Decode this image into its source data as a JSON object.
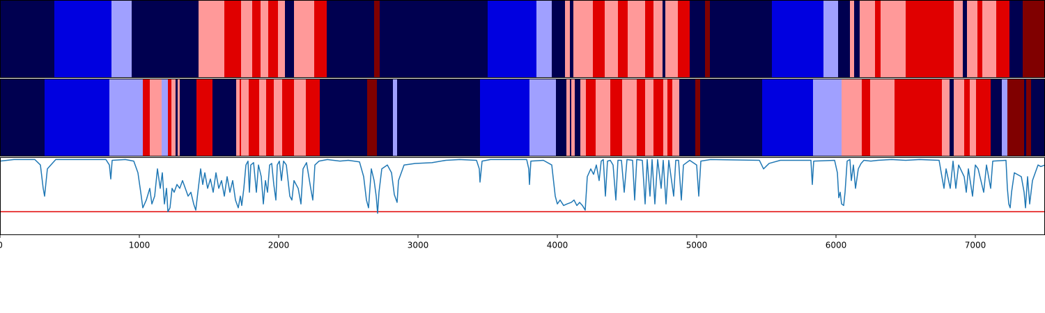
{
  "chart_data": [
    {
      "type": "strip",
      "colors": [
        "#000050",
        "#0000e0",
        "#a0a0ff",
        "#ff9999",
        "#e00000",
        "#800000"
      ],
      "xlim": [
        0,
        7500
      ],
      "bins": [
        0,
        390,
        800,
        945,
        1425,
        1610,
        1730,
        1810,
        1870,
        1925,
        1995,
        2045,
        2110,
        2255,
        2345,
        2685,
        2725,
        3500,
        3850,
        3960,
        4055,
        4090,
        4115,
        4255,
        4340,
        4435,
        4505,
        4630,
        4690,
        4755,
        4775,
        4865,
        4950,
        5060,
        5095,
        5540,
        5910,
        6015,
        6100,
        6130,
        6170,
        6280,
        6320,
        6500,
        6845,
        6910,
        6940,
        7015,
        7050,
        7150,
        7245,
        7340,
        7500
      ],
      "values": [
        0,
        1,
        2,
        0,
        3,
        4,
        3,
        4,
        3,
        4,
        3,
        0,
        3,
        4,
        0,
        5,
        0,
        1,
        2,
        0,
        3,
        0,
        3,
        4,
        3,
        4,
        3,
        4,
        3,
        0,
        3,
        4,
        0,
        5,
        0,
        1,
        2,
        0,
        3,
        0,
        3,
        4,
        3,
        4,
        3,
        0,
        3,
        4,
        3,
        4,
        0,
        5
      ]
    },
    {
      "type": "strip",
      "colors": [
        "#000050",
        "#0000e0",
        "#a0a0ff",
        "#ff9999",
        "#e00000",
        "#800000"
      ],
      "xlim": [
        0,
        7500
      ],
      "bins": [
        0,
        320,
        785,
        1025,
        1075,
        1160,
        1205,
        1230,
        1260,
        1275,
        1290,
        1410,
        1525,
        1695,
        1720,
        1730,
        1785,
        1860,
        1910,
        1965,
        2025,
        2110,
        2195,
        2295,
        2635,
        2705,
        2820,
        2850,
        3445,
        3800,
        3990,
        4065,
        4090,
        4100,
        4125,
        4165,
        4205,
        4275,
        4380,
        4465,
        4570,
        4630,
        4690,
        4760,
        4790,
        4825,
        4875,
        4990,
        5025,
        5470,
        5835,
        6040,
        6185,
        6245,
        6420,
        6760,
        6815,
        6845,
        6920,
        6960,
        7005,
        7110,
        7190,
        7230,
        7350,
        7365,
        7400,
        7500
      ],
      "values": [
        0,
        1,
        2,
        4,
        3,
        2,
        4,
        3,
        0,
        3,
        0,
        4,
        0,
        3,
        4,
        3,
        4,
        3,
        4,
        3,
        4,
        3,
        4,
        0,
        5,
        0,
        2,
        0,
        1,
        2,
        0,
        3,
        0,
        3,
        0,
        3,
        4,
        3,
        4,
        3,
        4,
        3,
        4,
        3,
        4,
        3,
        0,
        5,
        0,
        1,
        2,
        3,
        4,
        3,
        4,
        3,
        0,
        3,
        4,
        3,
        4,
        0,
        2,
        5,
        0,
        5,
        0
      ]
    },
    {
      "type": "line",
      "xlim": [
        0,
        7500
      ],
      "xticks": [
        0,
        1000,
        2000,
        3000,
        4000,
        5000,
        6000,
        7000
      ],
      "ylim": [
        0,
        1
      ],
      "threshold": 0.3,
      "threshold_color": "#e00000",
      "x": [
        0,
        100,
        250,
        290,
        310,
        320,
        340,
        400,
        760,
        785,
        795,
        805,
        900,
        960,
        990,
        1010,
        1025,
        1050,
        1075,
        1090,
        1110,
        1130,
        1150,
        1165,
        1180,
        1195,
        1205,
        1220,
        1235,
        1250,
        1270,
        1290,
        1310,
        1330,
        1350,
        1370,
        1390,
        1405,
        1420,
        1440,
        1455,
        1470,
        1490,
        1510,
        1530,
        1550,
        1570,
        1590,
        1610,
        1630,
        1650,
        1670,
        1690,
        1700,
        1710,
        1725,
        1735,
        1750,
        1765,
        1780,
        1790,
        1800,
        1820,
        1840,
        1855,
        1875,
        1890,
        1905,
        1920,
        1935,
        1950,
        1965,
        1980,
        1990,
        2005,
        2020,
        2035,
        2055,
        2080,
        2095,
        2110,
        2140,
        2160,
        2175,
        2200,
        2230,
        2245,
        2260,
        2290,
        2350,
        2440,
        2500,
        2580,
        2610,
        2630,
        2645,
        2665,
        2685,
        2700,
        2710,
        2720,
        2740,
        2780,
        2810,
        2830,
        2850,
        2860,
        2900,
        2980,
        3100,
        3200,
        3300,
        3420,
        3440,
        3445,
        3460,
        3520,
        3780,
        3795,
        3800,
        3810,
        3900,
        3960,
        3985,
        4000,
        4020,
        4045,
        4070,
        4100,
        4120,
        4140,
        4160,
        4180,
        4200,
        4215,
        4240,
        4260,
        4280,
        4300,
        4315,
        4330,
        4345,
        4360,
        4380,
        4400,
        4420,
        4435,
        4460,
        4480,
        4500,
        4540,
        4555,
        4570,
        4610,
        4630,
        4645,
        4665,
        4680,
        4700,
        4720,
        4745,
        4760,
        4780,
        4800,
        4835,
        4850,
        4870,
        4890,
        4905,
        4950,
        5000,
        5015,
        5030,
        5100,
        5450,
        5480,
        5520,
        5600,
        5820,
        5830,
        5840,
        5990,
        6010,
        6020,
        6030,
        6040,
        6055,
        6065,
        6080,
        6100,
        6110,
        6125,
        6140,
        6160,
        6180,
        6200,
        6250,
        6300,
        6400,
        6500,
        6600,
        6740,
        6760,
        6775,
        6790,
        6820,
        6840,
        6860,
        6880,
        6920,
        6935,
        6950,
        6980,
        7000,
        7020,
        7060,
        7080,
        7110,
        7125,
        7220,
        7230,
        7240,
        7250,
        7260,
        7280,
        7330,
        7350,
        7360,
        7375,
        7390,
        7410,
        7430,
        7450,
        7470,
        7500
      ],
      "series": [
        {
          "color": "#1f77b4",
          "values": [
            0.95,
            0.97,
            0.97,
            0.9,
            0.6,
            0.5,
            0.85,
            0.97,
            0.97,
            0.9,
            0.72,
            0.96,
            0.97,
            0.95,
            0.8,
            0.55,
            0.35,
            0.45,
            0.6,
            0.4,
            0.5,
            0.85,
            0.6,
            0.8,
            0.4,
            0.6,
            0.3,
            0.35,
            0.6,
            0.55,
            0.65,
            0.6,
            0.7,
            0.6,
            0.5,
            0.55,
            0.4,
            0.32,
            0.55,
            0.85,
            0.65,
            0.8,
            0.6,
            0.72,
            0.55,
            0.8,
            0.6,
            0.7,
            0.5,
            0.75,
            0.55,
            0.7,
            0.45,
            0.4,
            0.35,
            0.5,
            0.38,
            0.6,
            0.9,
            0.95,
            0.55,
            0.9,
            0.93,
            0.55,
            0.9,
            0.75,
            0.4,
            0.7,
            0.55,
            0.9,
            0.92,
            0.65,
            0.45,
            0.9,
            0.95,
            0.7,
            0.95,
            0.9,
            0.5,
            0.45,
            0.7,
            0.6,
            0.4,
            0.85,
            0.93,
            0.6,
            0.45,
            0.9,
            0.95,
            0.97,
            0.95,
            0.96,
            0.94,
            0.75,
            0.45,
            0.35,
            0.85,
            0.7,
            0.5,
            0.28,
            0.55,
            0.85,
            0.9,
            0.8,
            0.52,
            0.42,
            0.7,
            0.9,
            0.92,
            0.93,
            0.96,
            0.97,
            0.96,
            0.85,
            0.68,
            0.95,
            0.97,
            0.97,
            0.85,
            0.65,
            0.95,
            0.96,
            0.9,
            0.5,
            0.4,
            0.45,
            0.38,
            0.4,
            0.42,
            0.45,
            0.38,
            0.42,
            0.38,
            0.32,
            0.75,
            0.85,
            0.78,
            0.9,
            0.7,
            0.95,
            0.97,
            0.5,
            0.95,
            0.96,
            0.9,
            0.45,
            0.96,
            0.96,
            0.55,
            0.97,
            0.96,
            0.45,
            0.97,
            0.96,
            0.4,
            0.97,
            0.5,
            0.97,
            0.4,
            0.97,
            0.6,
            0.96,
            0.4,
            0.96,
            0.5,
            0.96,
            0.96,
            0.45,
            0.9,
            0.96,
            0.9,
            0.5,
            0.95,
            0.97,
            0.96,
            0.85,
            0.92,
            0.96,
            0.96,
            0.65,
            0.95,
            0.96,
            0.8,
            0.48,
            0.55,
            0.4,
            0.38,
            0.55,
            0.95,
            0.97,
            0.7,
            0.9,
            0.6,
            0.85,
            0.92,
            0.96,
            0.95,
            0.96,
            0.97,
            0.96,
            0.97,
            0.96,
            0.75,
            0.6,
            0.85,
            0.6,
            0.95,
            0.6,
            0.9,
            0.75,
            0.55,
            0.85,
            0.5,
            0.9,
            0.85,
            0.55,
            0.9,
            0.6,
            0.95,
            0.96,
            0.6,
            0.4,
            0.35,
            0.55,
            0.8,
            0.75,
            0.55,
            0.35,
            0.75,
            0.4,
            0.7,
            0.8,
            0.9,
            0.88,
            0.9
          ]
        }
      ]
    }
  ]
}
